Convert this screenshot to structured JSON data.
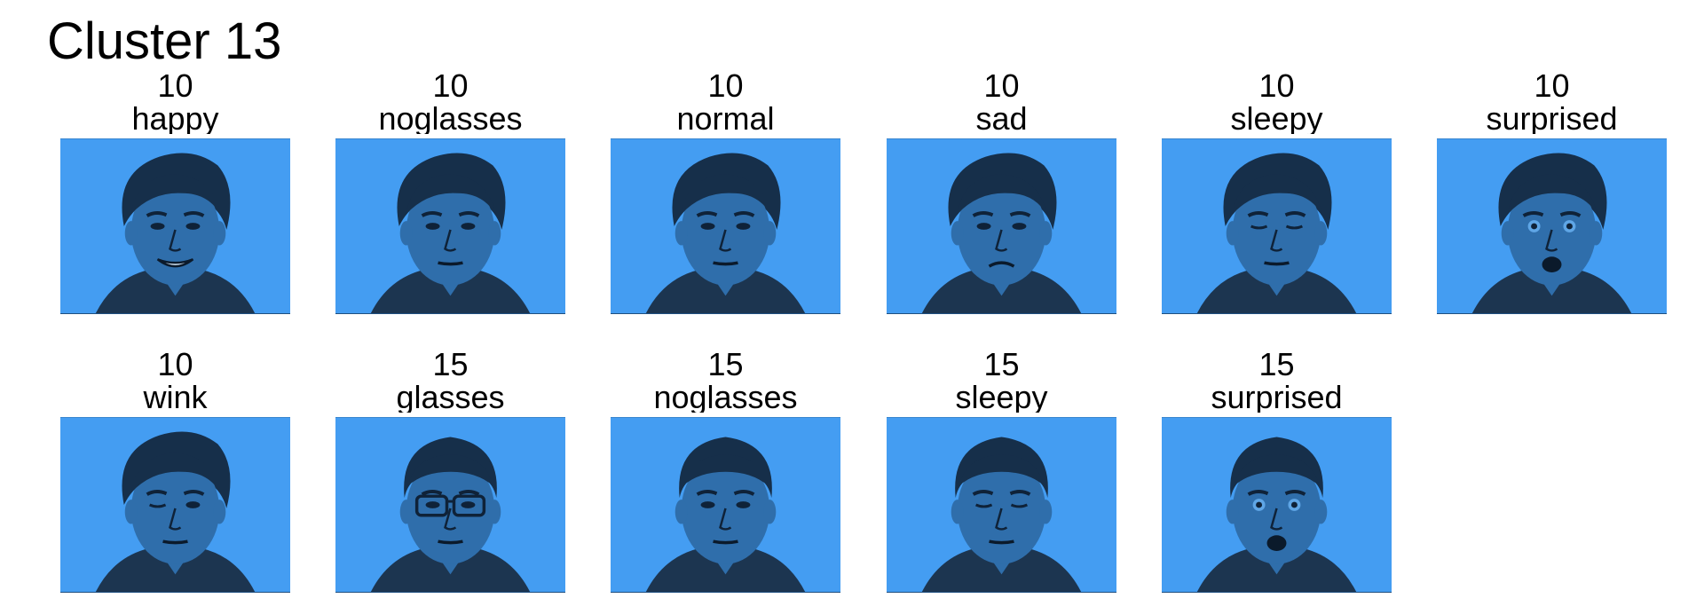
{
  "title": "Cluster 13",
  "colors": {
    "background": "#449df2",
    "face": "#2f6eab",
    "hair": "#162f4a",
    "shirt": "#1c3550",
    "feature": "#0f2238",
    "mouth": "#0b1a2b"
  },
  "faces": [
    {
      "subject": "10",
      "label": "happy",
      "expression": "happy",
      "glasses": false,
      "hair_style": "wavy"
    },
    {
      "subject": "10",
      "label": "noglasses",
      "expression": "neutral",
      "glasses": false,
      "hair_style": "wavy"
    },
    {
      "subject": "10",
      "label": "normal",
      "expression": "neutral",
      "glasses": false,
      "hair_style": "wavy"
    },
    {
      "subject": "10",
      "label": "sad",
      "expression": "sad",
      "glasses": false,
      "hair_style": "wavy"
    },
    {
      "subject": "10",
      "label": "sleepy",
      "expression": "sleepy",
      "glasses": false,
      "hair_style": "wavy"
    },
    {
      "subject": "10",
      "label": "surprised",
      "expression": "surprised",
      "glasses": false,
      "hair_style": "wavy"
    },
    {
      "subject": "10",
      "label": "wink",
      "expression": "wink",
      "glasses": false,
      "hair_style": "wavy"
    },
    {
      "subject": "15",
      "label": "glasses",
      "expression": "neutral",
      "glasses": true,
      "hair_style": "short"
    },
    {
      "subject": "15",
      "label": "noglasses",
      "expression": "neutral",
      "glasses": false,
      "hair_style": "short"
    },
    {
      "subject": "15",
      "label": "sleepy",
      "expression": "sleepy",
      "glasses": false,
      "hair_style": "short"
    },
    {
      "subject": "15",
      "label": "surprised",
      "expression": "surprised",
      "glasses": false,
      "hair_style": "short"
    }
  ]
}
